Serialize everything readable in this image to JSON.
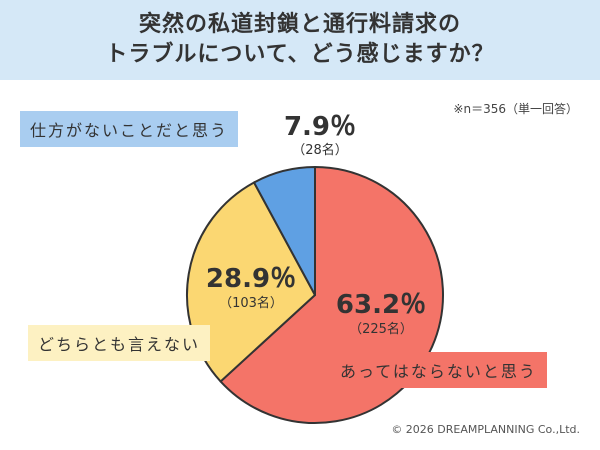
{
  "header": {
    "title_line1": "突然の私道封鎖と通行料請求の",
    "title_line2": "トラブルについて、どう感じますか？"
  },
  "note": "※n＝356（単一回答）",
  "chart_data": {
    "type": "pie",
    "title": "突然の私道封鎖と通行料請求のトラブルについて、どう感じますか？",
    "n": 356,
    "slices": [
      {
        "label": "あってはならないと思う",
        "percent": 63.2,
        "percent_text": "63.2％",
        "count": 225,
        "count_text": "（225名）",
        "color": "#f47468"
      },
      {
        "label": "どちらとも言えない",
        "percent": 28.9,
        "percent_text": "28.9％",
        "count": 103,
        "count_text": "（103名）",
        "color": "#fbd772"
      },
      {
        "label": "仕方がないことだと思う",
        "percent": 7.9,
        "percent_text": "7.9％",
        "count": 28,
        "count_text": "（28名）",
        "color": "#5fa0e3"
      }
    ]
  },
  "colors": {
    "header_bg": "#d5e8f7",
    "label_red_bg": "#f47468",
    "label_yellow_bg": "#fdf1c2",
    "label_blue_bg": "#a9cdf0"
  },
  "copyright": "© 2026 DREAMPLANNING Co.,Ltd."
}
